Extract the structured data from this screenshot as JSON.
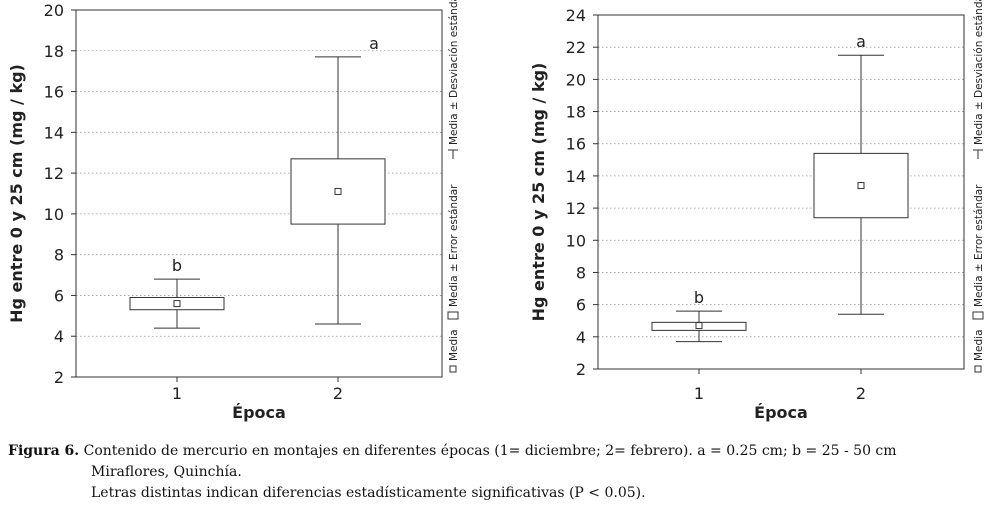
{
  "chart_data": [
    {
      "type": "boxplot",
      "ylabel": "Hg entre 0 y 25 cm (mg / kg)",
      "xlabel": "Época",
      "categories": [
        "1",
        "2"
      ],
      "ylim": [
        2,
        20
      ],
      "yticks": [
        "2",
        "4",
        "6",
        "8",
        "10",
        "12",
        "14",
        "16",
        "18",
        "20"
      ],
      "grid": "horizontal dotted",
      "boxes": [
        {
          "category": "1",
          "mean": 5.6,
          "se_low": 5.3,
          "se_high": 5.9,
          "sd_low": 4.4,
          "sd_high": 6.8,
          "letter": "b"
        },
        {
          "category": "2",
          "mean": 11.1,
          "se_low": 9.5,
          "se_high": 12.7,
          "sd_low": 4.6,
          "sd_high": 17.7,
          "letter": "a"
        }
      ],
      "legend": [
        "Media",
        "Media ± Error estándar",
        "Media ± Desviación estándar"
      ]
    },
    {
      "type": "boxplot",
      "ylabel": "Hg entre 0 y 25 cm (mg / kg)",
      "xlabel": "Época",
      "categories": [
        "1",
        "2"
      ],
      "ylim": [
        2,
        24
      ],
      "yticks": [
        "2",
        "4",
        "6",
        "8",
        "10",
        "12",
        "14",
        "16",
        "18",
        "20",
        "22",
        "24"
      ],
      "grid": "horizontal dotted",
      "boxes": [
        {
          "category": "1",
          "mean": 4.7,
          "se_low": 4.4,
          "se_high": 4.9,
          "sd_low": 3.7,
          "sd_high": 5.6,
          "letter": "b"
        },
        {
          "category": "2",
          "mean": 13.4,
          "se_low": 11.4,
          "se_high": 15.4,
          "sd_low": 5.4,
          "sd_high": 21.5,
          "letter": "a"
        }
      ],
      "legend": [
        "Media",
        "Media ± Error estándar",
        "Media ± Desviación estándar"
      ]
    }
  ],
  "caption": {
    "label": "Figura 6.",
    "line1": " Contenido de mercurio en montajes en diferentes épocas (1= diciembre; 2= febrero). a = 0.25 cm; b = 25 - 50 cm",
    "line2": "Miraflores, Quinchía.",
    "line3": "Letras distintas indican diferencias estadísticamente significativas (P < 0.05)."
  }
}
